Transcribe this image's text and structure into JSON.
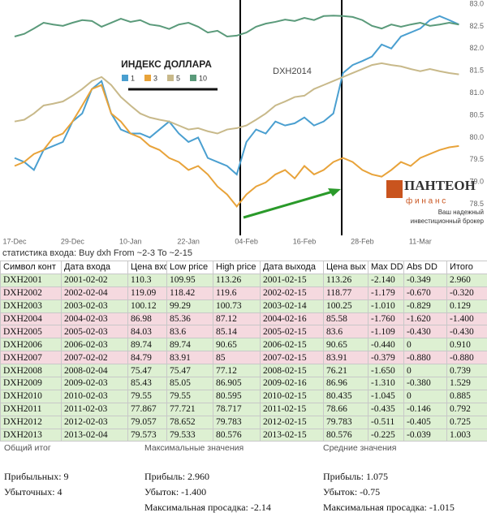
{
  "chart_data": {
    "type": "line",
    "title": "ИНДЕКС ДОЛЛАРА",
    "annotation": "DXH2014",
    "categories": [
      "17-Dec",
      null,
      null,
      null,
      null,
      null,
      "29-Dec",
      null,
      null,
      null,
      null,
      null,
      "10-Jan",
      null,
      null,
      null,
      null,
      null,
      "22-Jan",
      null,
      null,
      null,
      null,
      null,
      "04-Feb",
      null,
      null,
      null,
      null,
      null,
      "16-Feb",
      null,
      null,
      null,
      null,
      null,
      "28-Feb",
      null,
      null,
      null,
      null,
      null,
      "11-Mar",
      null,
      null,
      null,
      null
    ],
    "series": [
      {
        "name": "1",
        "color": "#4a9fd0",
        "values": [
          79.54,
          79.45,
          79.27,
          79.72,
          79.81,
          79.9,
          80.36,
          80.54,
          81.09,
          81.27,
          80.54,
          80.18,
          80.09,
          80.09,
          80.0,
          80.18,
          80.36,
          80.09,
          79.9,
          80.0,
          79.54,
          79.45,
          79.36,
          79.17,
          79.9,
          80.18,
          80.09,
          80.36,
          80.27,
          80.32,
          80.45,
          80.27,
          80.36,
          80.54,
          81.45,
          81.63,
          81.72,
          81.82,
          82.09,
          82.0,
          82.27,
          82.36,
          82.45,
          82.64,
          82.73,
          82.64,
          82.54
        ]
      },
      {
        "name": "3",
        "color": "#e8a33a",
        "values": [
          79.36,
          79.45,
          79.63,
          79.72,
          80.0,
          80.09,
          80.36,
          80.72,
          81.09,
          81.18,
          80.54,
          80.36,
          80.09,
          80.0,
          79.81,
          79.72,
          79.54,
          79.45,
          79.27,
          79.36,
          79.17,
          78.9,
          78.72,
          78.45,
          78.72,
          78.9,
          78.99,
          79.17,
          79.27,
          79.08,
          79.36,
          79.17,
          79.27,
          79.45,
          79.54,
          79.45,
          79.27,
          79.17,
          79.12,
          79.27,
          79.45,
          79.36,
          79.54,
          79.63,
          79.72,
          79.78,
          79.81
        ]
      },
      {
        "name": "5",
        "color": "#c8b98a",
        "values": [
          80.36,
          80.4,
          80.54,
          80.72,
          80.76,
          80.81,
          80.94,
          81.09,
          81.27,
          81.36,
          81.18,
          80.91,
          80.72,
          80.54,
          80.45,
          80.4,
          80.36,
          80.27,
          80.18,
          80.21,
          80.14,
          80.09,
          80.18,
          80.21,
          80.27,
          80.4,
          80.54,
          80.72,
          80.81,
          80.91,
          80.94,
          81.09,
          81.18,
          81.27,
          81.36,
          81.45,
          81.54,
          81.63,
          81.67,
          81.63,
          81.6,
          81.54,
          81.49,
          81.54,
          81.49,
          81.45,
          81.42
        ]
      },
      {
        "name": "10",
        "color": "#5a9a7a",
        "values": [
          82.27,
          82.33,
          82.45,
          82.58,
          82.54,
          82.51,
          82.58,
          82.64,
          82.62,
          82.49,
          82.58,
          82.67,
          82.6,
          82.64,
          82.54,
          82.51,
          82.44,
          82.54,
          82.58,
          82.49,
          82.36,
          82.4,
          82.27,
          82.29,
          82.36,
          82.49,
          82.56,
          82.6,
          82.65,
          82.62,
          82.69,
          82.64,
          82.73,
          82.74,
          82.73,
          82.71,
          82.64,
          82.51,
          82.45,
          82.54,
          82.49,
          82.54,
          82.58,
          82.51,
          82.54,
          82.58,
          82.54
        ]
      }
    ],
    "ylim": [
      77.8,
      83.0
    ],
    "yticks": [
      {
        "value": 78.5,
        "label": "78.5"
      },
      {
        "value": 79,
        "label": "79.0"
      },
      79.5,
      {
        "value": 80,
        "label": "80.0"
      },
      80.5,
      {
        "value": 81,
        "label": "81.0"
      },
      81.5,
      {
        "value": 82,
        "label": "82.0"
      },
      82.5,
      {
        "value": 83,
        "label": "83.0"
      }
    ],
    "grid": false
  },
  "logo": {
    "name": "ПАНТЕОН",
    "sub": "ф и н а н с",
    "line1": "Ваш надежный",
    "line2": "инвестиционный брокер"
  },
  "table": {
    "caption": "статистика входа: Buy dxh From ~2-3 To ~2-15",
    "header": [
      "Символ конт",
      "Дата входа",
      "Цена вход",
      "Low price",
      "High price",
      "Дата выхода",
      "Цена вых",
      "Max DD",
      "Abs DD",
      "Итого"
    ],
    "rows": [
      [
        "DXH2001",
        "2001-02-02",
        "110.3",
        "109.95",
        "113.26",
        "2001-02-15",
        "113.26",
        "-2.140",
        "-0.349",
        "2.960"
      ],
      [
        "DXH2002",
        "2002-02-04",
        "119.09",
        "118.42",
        "119.6",
        "2002-02-15",
        "118.77",
        "-1.179",
        "-0.670",
        "-0.320"
      ],
      [
        "DXH2003",
        "2003-02-03",
        "100.12",
        "99.29",
        "100.73",
        "2003-02-14",
        "100.25",
        "-1.010",
        "-0.829",
        "0.129"
      ],
      [
        "DXH2004",
        "2004-02-03",
        "86.98",
        "85.36",
        "87.12",
        "2004-02-16",
        "85.58",
        "-1.760",
        "-1.620",
        "-1.400"
      ],
      [
        "DXH2005",
        "2005-02-03",
        "84.03",
        "83.6",
        "85.14",
        "2005-02-15",
        "83.6",
        "-1.109",
        "-0.430",
        "-0.430"
      ],
      [
        "DXH2006",
        "2006-02-03",
        "89.74",
        "89.74",
        "90.65",
        "2006-02-15",
        "90.65",
        "-0.440",
        "0",
        "0.910"
      ],
      [
        "DXH2007",
        "2007-02-02",
        "84.79",
        "83.91",
        "85",
        "2007-02-15",
        "83.91",
        "-0.379",
        "-0.880",
        "-0.880"
      ],
      [
        "DXH2008",
        "2008-02-04",
        "75.47",
        "75.47",
        "77.12",
        "2008-02-15",
        "76.21",
        "-1.650",
        "0",
        "0.739"
      ],
      [
        "DXH2009",
        "2009-02-03",
        "85.43",
        "85.05",
        "86.905",
        "2009-02-16",
        "86.96",
        "-1.310",
        "-0.380",
        "1.529"
      ],
      [
        "DXH2010",
        "2010-02-03",
        "79.55",
        "79.55",
        "80.595",
        "2010-02-15",
        "80.435",
        "-1.045",
        "0",
        "0.885"
      ],
      [
        "DXH2011",
        "2011-02-03",
        "77.867",
        "77.721",
        "78.717",
        "2011-02-15",
        "78.66",
        "-0.435",
        "-0.146",
        "0.792"
      ],
      [
        "DXH2012",
        "2012-02-03",
        "79.057",
        "78.652",
        "79.783",
        "2012-02-15",
        "79.783",
        "-0.511",
        "-0.405",
        "0.725"
      ],
      [
        "DXH2013",
        "2013-02-04",
        "79.573",
        "79.533",
        "80.576",
        "2013-02-15",
        "80.576",
        "-0.225",
        "-0.039",
        "1.003"
      ]
    ]
  },
  "summary": [
    {
      "title": "Общий итог",
      "lines": [
        "Прибыльных: 9",
        "Убыточных: 4"
      ]
    },
    {
      "title": "Максимальные значения",
      "lines": [
        "Прибыль: 2.960",
        "Убыток: -1.400",
        "Максимальная просадка: -2.14"
      ]
    },
    {
      "title": "Средние значения",
      "lines": [
        "Прибыль: 1.075",
        "Убыток: -0.75",
        "Максимальная просадка: -1.015"
      ]
    }
  ]
}
